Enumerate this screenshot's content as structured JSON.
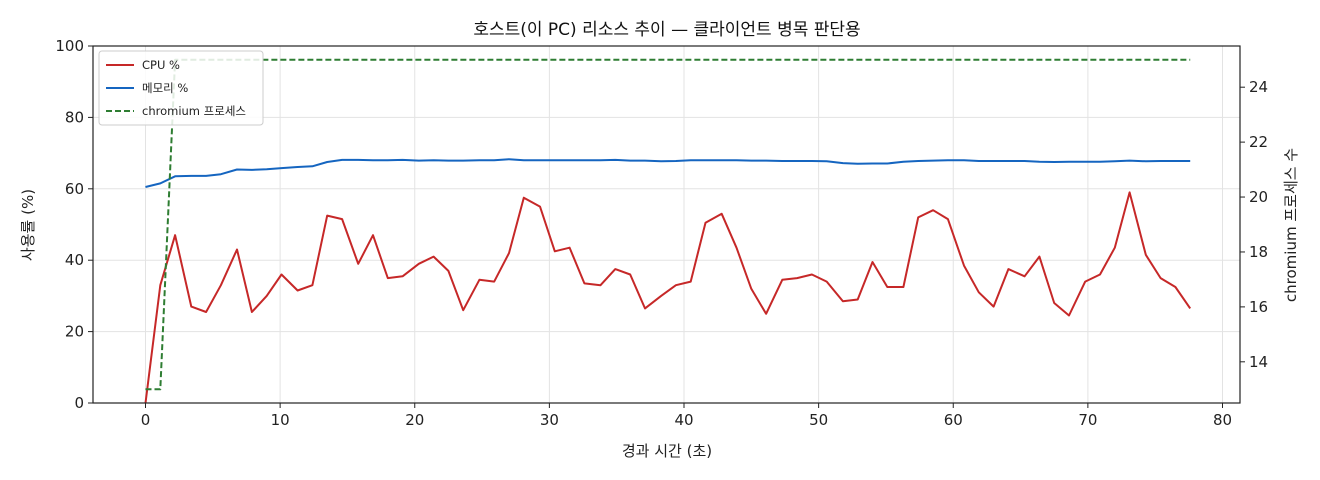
{
  "chart_data": {
    "type": "line",
    "title": "호스트(이 PC) 리소스 추이 — 클라이언트 병목 판단용",
    "xlabel": "경과 시간 (초)",
    "ylabel": "사용률 (%)",
    "y2label": "chromium 프로세스 수",
    "xlim": [
      -3.9,
      81.3
    ],
    "ylim": [
      0,
      100
    ],
    "y2lim": [
      12.5,
      25.5
    ],
    "xticks": [
      "0",
      "10",
      "20",
      "30",
      "40",
      "50",
      "60",
      "70",
      "80"
    ],
    "yticks": [
      "0",
      "20",
      "40",
      "60",
      "80",
      "100"
    ],
    "y2ticks": [
      "14",
      "16",
      "18",
      "20",
      "22",
      "24"
    ],
    "grid": true,
    "legend": "top-left",
    "series": [
      {
        "name": "CPU %",
        "axis": "left",
        "color": "#c62828",
        "style": "solid",
        "x": [
          0,
          1.1,
          2.2,
          3.4,
          4.5,
          5.6,
          6.8,
          7.9,
          9.0,
          10.1,
          11.3,
          12.4,
          13.5,
          14.6,
          15.8,
          16.9,
          18.0,
          19.1,
          20.3,
          21.4,
          22.5,
          23.6,
          24.8,
          25.9,
          27.0,
          28.1,
          29.3,
          30.4,
          31.5,
          32.6,
          33.8,
          34.9,
          36.0,
          37.1,
          38.3,
          39.4,
          40.5,
          41.6,
          42.8,
          43.9,
          45.0,
          46.1,
          47.3,
          48.4,
          49.5,
          50.6,
          51.8,
          52.9,
          54.0,
          55.1,
          56.3,
          57.4,
          58.5,
          59.6,
          60.8,
          61.9,
          63.0,
          64.1,
          65.3,
          66.4,
          67.5,
          68.6,
          69.8,
          70.9,
          72.0,
          73.1,
          74.3,
          75.4,
          76.5,
          77.6
        ],
        "values": [
          0,
          33,
          47,
          27,
          25.5,
          33,
          43,
          25.5,
          30,
          36,
          31.5,
          33,
          52.5,
          51.5,
          39,
          47,
          35,
          35.5,
          39,
          41,
          37,
          26,
          34.5,
          34,
          42,
          57.5,
          55,
          42.5,
          43.5,
          33.5,
          33,
          37.5,
          36,
          26.5,
          30,
          33,
          34,
          50.5,
          53,
          43.5,
          32,
          25,
          34.5,
          35,
          36,
          34,
          28.5,
          29,
          39.5,
          32.5,
          32.5,
          52,
          54,
          51.5,
          38.5,
          31,
          27,
          37.5,
          35.5,
          41,
          28,
          24.5,
          34,
          36,
          43.5,
          59,
          41.5,
          35,
          32.5,
          26.5
        ]
      },
      {
        "name": "메모리 %",
        "axis": "left",
        "color": "#1565c0",
        "style": "solid",
        "x": [
          0,
          1.1,
          2.2,
          3.4,
          4.5,
          5.6,
          6.8,
          7.9,
          9.0,
          10.1,
          11.3,
          12.4,
          13.5,
          14.6,
          15.8,
          16.9,
          18.0,
          19.1,
          20.3,
          21.4,
          22.5,
          23.6,
          24.8,
          25.9,
          27.0,
          28.1,
          29.3,
          30.4,
          31.5,
          32.6,
          33.8,
          34.9,
          36.0,
          37.1,
          38.3,
          39.4,
          40.5,
          41.6,
          42.8,
          43.9,
          45.0,
          46.1,
          47.3,
          48.4,
          49.5,
          50.6,
          51.8,
          52.9,
          54.0,
          55.1,
          56.3,
          57.4,
          58.5,
          59.6,
          60.8,
          61.9,
          63.0,
          64.1,
          65.3,
          66.4,
          67.5,
          68.6,
          69.8,
          70.9,
          72.0,
          73.1,
          74.3,
          75.4,
          76.5,
          77.6
        ],
        "values": [
          60.5,
          61.5,
          63.5,
          63.6,
          63.6,
          64.1,
          65.4,
          65.3,
          65.5,
          65.8,
          66.1,
          66.3,
          67.5,
          68.1,
          68.1,
          68.0,
          68.0,
          68.1,
          67.9,
          68.0,
          67.9,
          67.9,
          68.0,
          68.0,
          68.3,
          68.0,
          68.0,
          68.0,
          68.0,
          68.0,
          68.0,
          68.1,
          67.9,
          67.9,
          67.7,
          67.8,
          68.0,
          68.0,
          68.0,
          68.0,
          67.9,
          67.9,
          67.8,
          67.8,
          67.8,
          67.7,
          67.2,
          67.0,
          67.1,
          67.1,
          67.6,
          67.8,
          67.9,
          68.0,
          68.0,
          67.8,
          67.8,
          67.8,
          67.8,
          67.6,
          67.5,
          67.6,
          67.6,
          67.6,
          67.7,
          67.9,
          67.7,
          67.8,
          67.8,
          67.8
        ]
      },
      {
        "name": "chromium 프로세스",
        "axis": "right",
        "color": "#2e7d32",
        "style": "dashed",
        "x": [
          0,
          1.1,
          2.2,
          3.4,
          4.5,
          5.6,
          6.8,
          7.9,
          9.0,
          10.1,
          11.3,
          12.4,
          13.5,
          14.6,
          15.8,
          16.9,
          18.0,
          19.1,
          20.3,
          21.4,
          22.5,
          23.6,
          24.8,
          25.9,
          27.0,
          28.1,
          29.3,
          30.4,
          31.5,
          32.6,
          33.8,
          34.9,
          36.0,
          37.1,
          38.3,
          39.4,
          40.5,
          41.6,
          42.8,
          43.9,
          45.0,
          46.1,
          47.3,
          48.4,
          49.5,
          50.6,
          51.8,
          52.9,
          54.0,
          55.1,
          56.3,
          57.4,
          58.5,
          59.6,
          60.8,
          61.9,
          63.0,
          64.1,
          65.3,
          66.4,
          67.5,
          68.6,
          69.8,
          70.9,
          72.0,
          73.1,
          74.3,
          75.4,
          76.5,
          77.6
        ],
        "values": [
          13,
          13,
          25,
          25,
          25,
          25,
          25,
          25,
          25,
          25,
          25,
          25,
          25,
          25,
          25,
          25,
          25,
          25,
          25,
          25,
          25,
          25,
          25,
          25,
          25,
          25,
          25,
          25,
          25,
          25,
          25,
          25,
          25,
          25,
          25,
          25,
          25,
          25,
          25,
          25,
          25,
          25,
          25,
          25,
          25,
          25,
          25,
          25,
          25,
          25,
          25,
          25,
          25,
          25,
          25,
          25,
          25,
          25,
          25,
          25,
          25,
          25,
          25,
          25,
          25,
          25,
          25,
          25,
          25,
          25
        ]
      }
    ]
  }
}
